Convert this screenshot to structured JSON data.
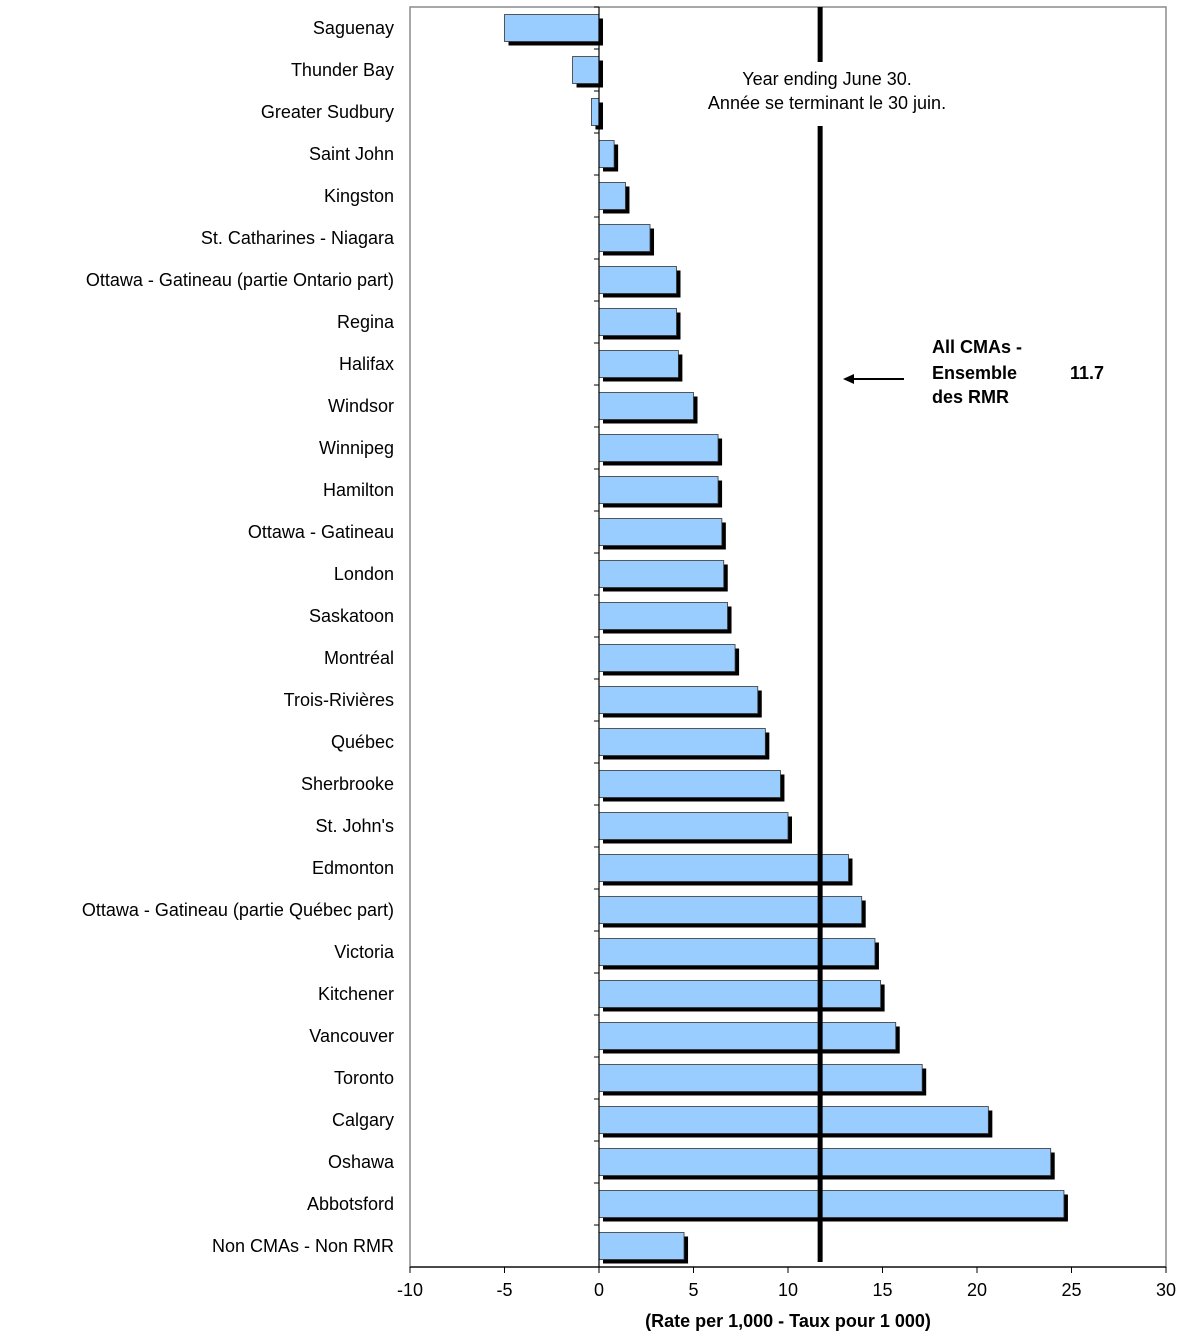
{
  "chart_data": {
    "type": "bar",
    "orientation": "horizontal",
    "categories": [
      "Saguenay",
      "Thunder Bay",
      "Greater Sudbury",
      "Saint John",
      "Kingston",
      "St. Catharines - Niagara",
      "Ottawa - Gatineau (partie Ontario part)",
      "Regina",
      "Halifax",
      "Windsor",
      "Winnipeg",
      "Hamilton",
      "Ottawa - Gatineau",
      "London",
      "Saskatoon",
      "Montréal",
      "Trois-Rivières",
      "Québec",
      "Sherbrooke",
      "St. John's",
      "Edmonton",
      "Ottawa - Gatineau (partie Québec part)",
      "Victoria",
      "Kitchener",
      "Vancouver",
      "Toronto",
      "Calgary",
      "Oshawa",
      "Abbotsford",
      "Non CMAs - Non RMR"
    ],
    "values": [
      -5.0,
      -1.4,
      -0.4,
      0.8,
      1.4,
      2.7,
      4.1,
      4.1,
      4.2,
      5.0,
      6.3,
      6.3,
      6.5,
      6.6,
      6.8,
      7.2,
      8.4,
      8.8,
      9.6,
      10.0,
      13.2,
      13.9,
      14.6,
      14.9,
      15.7,
      17.1,
      20.6,
      23.9,
      24.6,
      4.5
    ],
    "xlabel": "(Rate per 1,000 - Taux pour 1 000)",
    "xlim": [
      -10,
      30
    ],
    "xticks": [
      -10,
      -5,
      0,
      5,
      10,
      15,
      20,
      25,
      30
    ],
    "grid": false,
    "bar_color": "#99ccff",
    "shadow_color": "#000000",
    "reference_line": {
      "value": 11.7,
      "value_label": "11.7",
      "label_lines": [
        "All CMAs -",
        "Ensemble",
        "des RMR"
      ]
    },
    "note_lines": [
      "Year ending June 30.",
      "Année se terminant le 30 juin."
    ]
  }
}
